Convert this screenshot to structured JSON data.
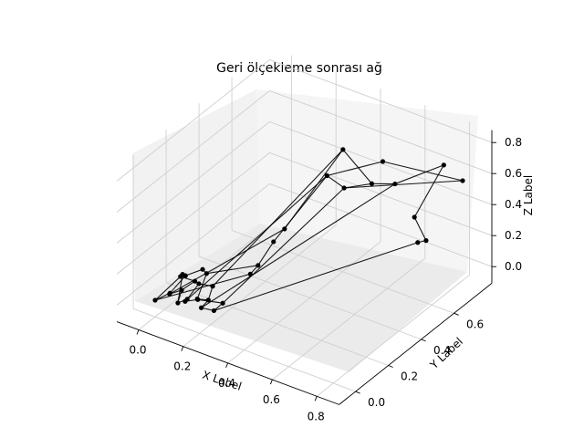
{
  "chart_data": {
    "type": "network-3d",
    "title": "Geri ölçekleme sonrası ağ",
    "xlabel": "X Label",
    "ylabel": "Y Label",
    "zlabel": "Z Label",
    "x_ticks": [
      "0.0",
      "0.2",
      "0.4",
      "0.6",
      "0.8"
    ],
    "y_ticks": [
      "0.0",
      "0.2",
      "0.4",
      "0.6"
    ],
    "z_ticks": [
      "0.0",
      "0.2",
      "0.4",
      "0.6",
      "0.8"
    ],
    "grid": true,
    "node_color": "#000000",
    "edge_color": "#000000",
    "nodes": [
      {
        "x": 0.0,
        "y": 0.0,
        "z": 0.0
      },
      {
        "x": 0.03,
        "y": 0.05,
        "z": 0.02
      },
      {
        "x": 0.05,
        "y": 0.02,
        "z": 0.05
      },
      {
        "x": 0.06,
        "y": 0.08,
        "z": 0.03
      },
      {
        "x": 0.08,
        "y": 0.03,
        "z": 0.0
      },
      {
        "x": 0.1,
        "y": 0.06,
        "z": 0.01
      },
      {
        "x": 0.12,
        "y": 0.02,
        "z": 0.04
      },
      {
        "x": 0.14,
        "y": 0.07,
        "z": 0.02
      },
      {
        "x": 0.16,
        "y": 0.04,
        "z": 0.06
      },
      {
        "x": 0.18,
        "y": 0.08,
        "z": 0.03
      },
      {
        "x": 0.2,
        "y": 0.01,
        "z": 0.05
      },
      {
        "x": 0.22,
        "y": 0.06,
        "z": 0.0
      },
      {
        "x": 0.04,
        "y": 0.1,
        "z": 0.09
      },
      {
        "x": 0.09,
        "y": 0.12,
        "z": 0.07
      },
      {
        "x": 0.13,
        "y": 0.09,
        "z": 0.1
      },
      {
        "x": 0.17,
        "y": 0.12,
        "z": 0.08
      },
      {
        "x": 0.07,
        "y": 0.09,
        "z": 0.12
      },
      {
        "x": 0.11,
        "y": 0.14,
        "z": 0.14
      },
      {
        "x": 0.15,
        "y": 0.11,
        "z": 0.16
      },
      {
        "x": 0.23,
        "y": 0.1,
        "z": 0.02
      },
      {
        "x": 0.02,
        "y": 0.14,
        "z": 0.06
      },
      {
        "x": 0.28,
        "y": 0.2,
        "z": 0.15
      },
      {
        "x": 0.3,
        "y": 0.22,
        "z": 0.2
      },
      {
        "x": 0.34,
        "y": 0.26,
        "z": 0.34
      },
      {
        "x": 0.36,
        "y": 0.3,
        "z": 0.4
      },
      {
        "x": 0.44,
        "y": 0.45,
        "z": 0.66
      },
      {
        "x": 0.48,
        "y": 0.5,
        "z": 0.56
      },
      {
        "x": 0.46,
        "y": 0.52,
        "z": 0.78
      },
      {
        "x": 0.56,
        "y": 0.56,
        "z": 0.58
      },
      {
        "x": 0.58,
        "y": 0.6,
        "z": 0.7
      },
      {
        "x": 0.62,
        "y": 0.62,
        "z": 0.56
      },
      {
        "x": 0.7,
        "y": 0.65,
        "z": 0.2
      },
      {
        "x": 0.7,
        "y": 0.63,
        "z": 0.38
      },
      {
        "x": 0.73,
        "y": 0.66,
        "z": 0.22
      },
      {
        "x": 0.78,
        "y": 0.7,
        "z": 0.7
      },
      {
        "x": 0.85,
        "y": 0.72,
        "z": 0.62
      }
    ],
    "edges": [
      [
        0,
        1
      ],
      [
        1,
        2
      ],
      [
        2,
        3
      ],
      [
        3,
        4
      ],
      [
        4,
        5
      ],
      [
        5,
        6
      ],
      [
        6,
        7
      ],
      [
        7,
        8
      ],
      [
        8,
        9
      ],
      [
        9,
        10
      ],
      [
        10,
        11
      ],
      [
        0,
        12
      ],
      [
        12,
        13
      ],
      [
        13,
        14
      ],
      [
        14,
        15
      ],
      [
        16,
        17
      ],
      [
        17,
        18
      ],
      [
        18,
        8
      ],
      [
        1,
        16
      ],
      [
        3,
        13
      ],
      [
        5,
        14
      ],
      [
        7,
        19
      ],
      [
        19,
        11
      ],
      [
        20,
        12
      ],
      [
        20,
        4
      ],
      [
        9,
        15
      ],
      [
        0,
        21
      ],
      [
        21,
        22
      ],
      [
        22,
        23
      ],
      [
        23,
        25
      ],
      [
        2,
        24
      ],
      [
        24,
        27
      ],
      [
        27,
        28
      ],
      [
        28,
        26
      ],
      [
        26,
        25
      ],
      [
        25,
        29
      ],
      [
        29,
        35
      ],
      [
        28,
        30
      ],
      [
        30,
        34
      ],
      [
        34,
        32
      ],
      [
        32,
        33
      ],
      [
        33,
        31
      ],
      [
        31,
        11
      ],
      [
        35,
        26
      ],
      [
        6,
        25
      ],
      [
        10,
        30
      ],
      [
        15,
        27
      ],
      [
        19,
        26
      ],
      [
        22,
        18
      ]
    ]
  }
}
